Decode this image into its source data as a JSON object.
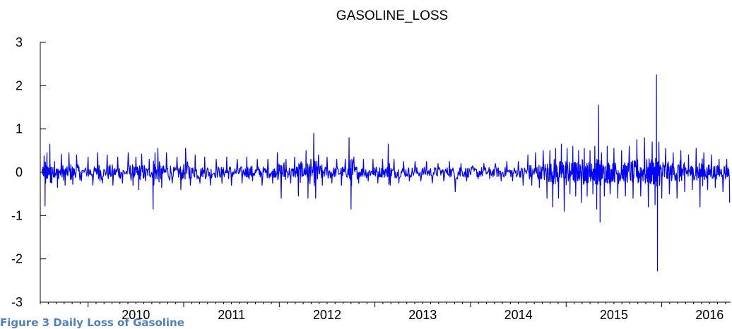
{
  "caption": "Figure 3 Daily Loss of Gasoline",
  "colors": {
    "series": "#0000ff",
    "axis": "#000000",
    "caption": "#4f81bd"
  },
  "chart_data": {
    "type": "line",
    "title": "GASOLINE_LOSS",
    "xlabel": "",
    "ylabel": "",
    "xlim": [
      2009.5,
      2016.72
    ],
    "ylim": [
      -3,
      3
    ],
    "yticks": [
      3,
      2,
      1,
      0,
      -1,
      -2,
      -3
    ],
    "xtick_labels": [
      "2010",
      "2011",
      "2012",
      "2013",
      "2014",
      "2015",
      "2016"
    ],
    "grid": false,
    "legend": "none",
    "series": [
      {
        "points": [
          [
            2009.52,
            0.08
          ],
          [
            2009.54,
            0.38
          ],
          [
            2009.55,
            -0.78
          ],
          [
            2009.57,
            0.45
          ],
          [
            2009.58,
            0.05
          ],
          [
            2009.6,
            0.65
          ],
          [
            2009.62,
            -0.25
          ],
          [
            2009.65,
            0.25
          ],
          [
            2009.68,
            -0.35
          ],
          [
            2009.72,
            0.42
          ],
          [
            2009.76,
            -0.3
          ],
          [
            2009.8,
            0.45
          ],
          [
            2009.84,
            -0.28
          ],
          [
            2009.88,
            0.4
          ],
          [
            2009.93,
            -0.2
          ],
          [
            2010.0,
            0.35
          ],
          [
            2010.05,
            -0.3
          ],
          [
            2010.1,
            0.45
          ],
          [
            2010.15,
            -0.25
          ],
          [
            2010.2,
            0.4
          ],
          [
            2010.26,
            -0.3
          ],
          [
            2010.31,
            0.35
          ],
          [
            2010.36,
            -0.25
          ],
          [
            2010.42,
            0.45
          ],
          [
            2010.47,
            -0.3
          ],
          [
            2010.5,
            0.35
          ],
          [
            2010.53,
            -0.4
          ],
          [
            2010.56,
            0.42
          ],
          [
            2010.6,
            -0.2
          ],
          [
            2010.64,
            0.3
          ],
          [
            2010.68,
            -0.85
          ],
          [
            2010.7,
            0.45
          ],
          [
            2010.73,
            0.55
          ],
          [
            2010.77,
            -0.35
          ],
          [
            2010.82,
            0.45
          ],
          [
            2010.88,
            -0.25
          ],
          [
            2010.93,
            0.35
          ],
          [
            2010.97,
            -0.4
          ],
          [
            2011.02,
            0.55
          ],
          [
            2011.07,
            -0.3
          ],
          [
            2011.12,
            0.4
          ],
          [
            2011.17,
            -0.25
          ],
          [
            2011.22,
            0.35
          ],
          [
            2011.28,
            -0.3
          ],
          [
            2011.34,
            0.3
          ],
          [
            2011.4,
            -0.25
          ],
          [
            2011.45,
            0.35
          ],
          [
            2011.5,
            -0.3
          ],
          [
            2011.56,
            0.3
          ],
          [
            2011.61,
            -0.25
          ],
          [
            2011.66,
            0.35
          ],
          [
            2011.72,
            -0.2
          ],
          [
            2011.77,
            0.3
          ],
          [
            2011.82,
            -0.3
          ],
          [
            2011.88,
            0.3
          ],
          [
            2011.93,
            -0.25
          ],
          [
            2011.98,
            0.45
          ],
          [
            2012.02,
            -0.6
          ],
          [
            2012.07,
            0.3
          ],
          [
            2012.12,
            -0.25
          ],
          [
            2012.16,
            0.35
          ],
          [
            2012.2,
            -0.55
          ],
          [
            2012.24,
            0.2
          ],
          [
            2012.28,
            0.5
          ],
          [
            2012.3,
            -0.6
          ],
          [
            2012.33,
            0.3
          ],
          [
            2012.36,
            0.9
          ],
          [
            2012.38,
            -0.6
          ],
          [
            2012.41,
            0.4
          ],
          [
            2012.45,
            -0.3
          ],
          [
            2012.5,
            0.35
          ],
          [
            2012.55,
            -0.25
          ],
          [
            2012.6,
            0.3
          ],
          [
            2012.65,
            -0.3
          ],
          [
            2012.69,
            0.3
          ],
          [
            2012.73,
            0.8
          ],
          [
            2012.75,
            -0.85
          ],
          [
            2012.78,
            0.35
          ],
          [
            2012.83,
            -0.25
          ],
          [
            2012.88,
            0.3
          ],
          [
            2012.93,
            -0.2
          ],
          [
            2012.98,
            0.3
          ],
          [
            2013.03,
            -0.25
          ],
          [
            2013.08,
            0.3
          ],
          [
            2013.14,
            0.65
          ],
          [
            2013.16,
            -0.3
          ],
          [
            2013.2,
            0.3
          ],
          [
            2013.25,
            -0.25
          ],
          [
            2013.3,
            0.25
          ],
          [
            2013.36,
            -0.2
          ],
          [
            2013.42,
            0.25
          ],
          [
            2013.48,
            -0.2
          ],
          [
            2013.54,
            0.25
          ],
          [
            2013.6,
            -0.25
          ],
          [
            2013.66,
            0.2
          ],
          [
            2013.72,
            -0.2
          ],
          [
            2013.78,
            0.25
          ],
          [
            2013.84,
            -0.45
          ],
          [
            2013.9,
            0.2
          ],
          [
            2013.96,
            -0.2
          ],
          [
            2014.02,
            0.15
          ],
          [
            2014.08,
            -0.15
          ],
          [
            2014.14,
            0.2
          ],
          [
            2014.2,
            -0.15
          ],
          [
            2014.26,
            0.2
          ],
          [
            2014.32,
            -0.2
          ],
          [
            2014.38,
            0.25
          ],
          [
            2014.44,
            -0.2
          ],
          [
            2014.5,
            0.25
          ],
          [
            2014.55,
            -0.3
          ],
          [
            2014.6,
            0.4
          ],
          [
            2014.64,
            -0.3
          ],
          [
            2014.68,
            0.45
          ],
          [
            2014.72,
            -0.35
          ],
          [
            2014.76,
            0.5
          ],
          [
            2014.8,
            -0.6
          ],
          [
            2014.83,
            0.5
          ],
          [
            2014.86,
            -0.8
          ],
          [
            2014.89,
            0.55
          ],
          [
            2014.92,
            -0.6
          ],
          [
            2014.95,
            0.65
          ],
          [
            2014.98,
            -0.9
          ],
          [
            2015.01,
            0.55
          ],
          [
            2015.04,
            -0.5
          ],
          [
            2015.07,
            0.6
          ],
          [
            2015.1,
            -0.55
          ],
          [
            2015.13,
            0.5
          ],
          [
            2015.16,
            -0.7
          ],
          [
            2015.19,
            0.55
          ],
          [
            2015.22,
            -0.55
          ],
          [
            2015.25,
            0.5
          ],
          [
            2015.28,
            -0.5
          ],
          [
            2015.3,
            0.6
          ],
          [
            2015.32,
            -0.85
          ],
          [
            2015.34,
            1.55
          ],
          [
            2015.355,
            -1.15
          ],
          [
            2015.37,
            0.45
          ],
          [
            2015.4,
            -0.55
          ],
          [
            2015.43,
            0.6
          ],
          [
            2015.46,
            -0.5
          ],
          [
            2015.5,
            0.55
          ],
          [
            2015.54,
            -0.6
          ],
          [
            2015.58,
            0.5
          ],
          [
            2015.62,
            -0.55
          ],
          [
            2015.66,
            0.6
          ],
          [
            2015.7,
            -0.6
          ],
          [
            2015.74,
            0.75
          ],
          [
            2015.78,
            -0.55
          ],
          [
            2015.82,
            0.8
          ],
          [
            2015.86,
            -0.8
          ],
          [
            2015.9,
            0.7
          ],
          [
            2015.93,
            -0.75
          ],
          [
            2015.945,
            2.25
          ],
          [
            2015.955,
            -2.28
          ],
          [
            2015.97,
            0.7
          ],
          [
            2016.0,
            -0.6
          ],
          [
            2016.04,
            0.55
          ],
          [
            2016.08,
            -0.5
          ],
          [
            2016.12,
            0.45
          ],
          [
            2016.16,
            -0.6
          ],
          [
            2016.2,
            0.5
          ],
          [
            2016.24,
            -0.45
          ],
          [
            2016.28,
            0.4
          ],
          [
            2016.32,
            -0.4
          ],
          [
            2016.36,
            0.55
          ],
          [
            2016.4,
            -0.8
          ],
          [
            2016.44,
            0.45
          ],
          [
            2016.48,
            -0.4
          ],
          [
            2016.52,
            0.4
          ],
          [
            2016.56,
            -0.35
          ],
          [
            2016.6,
            0.3
          ],
          [
            2016.64,
            -0.45
          ],
          [
            2016.68,
            0.3
          ],
          [
            2016.71,
            -0.7
          ]
        ]
      }
    ]
  }
}
